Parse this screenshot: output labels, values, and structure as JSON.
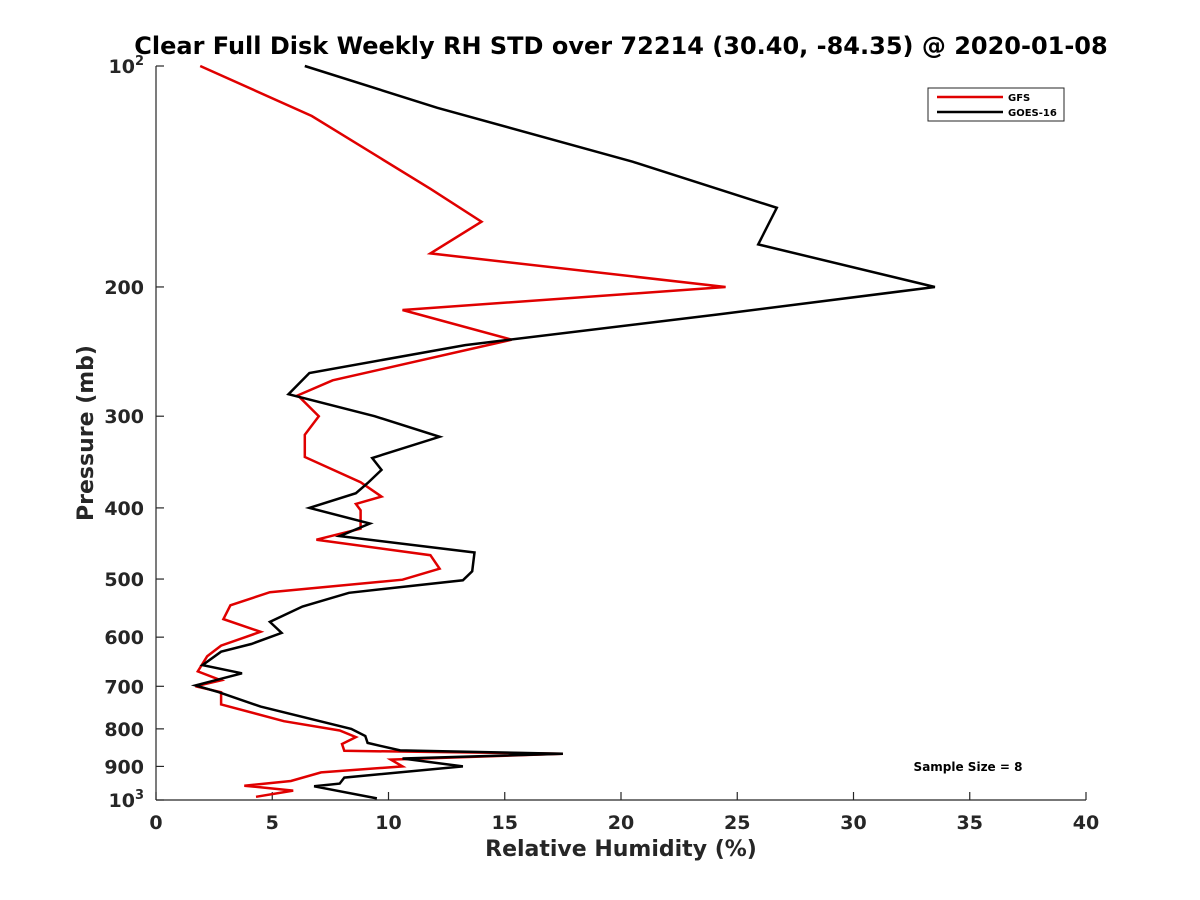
{
  "chart_data": {
    "type": "line",
    "title": "Clear Full Disk Weekly RH STD over 72214 (30.40, -84.35) @ 2020-01-08",
    "xlabel": "Relative Humidity (%)",
    "ylabel": "Pressure (mb)",
    "xlim": [
      0,
      40
    ],
    "ylim": [
      100,
      1000
    ],
    "yscale": "log",
    "y_reversed": true,
    "xticks": [
      0,
      5,
      10,
      15,
      20,
      25,
      30,
      35,
      40
    ],
    "yticks": [
      {
        "value": 100,
        "base": "10",
        "exp": "2"
      },
      {
        "value": 200,
        "label": "200"
      },
      {
        "value": 300,
        "label": "300"
      },
      {
        "value": 400,
        "label": "400"
      },
      {
        "value": 500,
        "label": "500"
      },
      {
        "value": 600,
        "label": "600"
      },
      {
        "value": 700,
        "label": "700"
      },
      {
        "value": 800,
        "label": "800"
      },
      {
        "value": 900,
        "label": "900"
      },
      {
        "value": 1000,
        "base": "10",
        "exp": "3"
      }
    ],
    "legend_position": "top-right",
    "series": [
      {
        "name": "GFS",
        "color": "#e00000",
        "points": [
          [
            1.9,
            100
          ],
          [
            6.7,
            117
          ],
          [
            11.8,
            147
          ],
          [
            14.0,
            163
          ],
          [
            11.8,
            180
          ],
          [
            24.5,
            200
          ],
          [
            10.6,
            215
          ],
          [
            15.3,
            236
          ],
          [
            7.6,
            268
          ],
          [
            6.1,
            281
          ],
          [
            7.0,
            300
          ],
          [
            6.4,
            318
          ],
          [
            6.4,
            341
          ],
          [
            8.8,
            369
          ],
          [
            9.7,
            386
          ],
          [
            8.6,
            395
          ],
          [
            8.8,
            403
          ],
          [
            8.8,
            427
          ],
          [
            6.9,
            442
          ],
          [
            11.8,
            464
          ],
          [
            12.2,
            484
          ],
          [
            10.6,
            501
          ],
          [
            4.9,
            521
          ],
          [
            3.2,
            543
          ],
          [
            2.9,
            567
          ],
          [
            4.5,
            590
          ],
          [
            2.8,
            616
          ],
          [
            2.2,
            637
          ],
          [
            1.8,
            668
          ],
          [
            2.8,
            687
          ],
          [
            1.7,
            700
          ],
          [
            2.8,
            713
          ],
          [
            2.8,
            741
          ],
          [
            5.5,
            781
          ],
          [
            7.9,
            804
          ],
          [
            8.6,
            821
          ],
          [
            8.0,
            839
          ],
          [
            8.1,
            857
          ],
          [
            17.5,
            865
          ],
          [
            10.1,
            881
          ],
          [
            10.6,
            900
          ],
          [
            7.1,
            917
          ],
          [
            5.8,
            942
          ],
          [
            3.8,
            956
          ],
          [
            5.9,
            971
          ],
          [
            4.3,
            990
          ]
        ]
      },
      {
        "name": "GOES-16",
        "color": "#000000",
        "points": [
          [
            6.4,
            100
          ],
          [
            12.1,
            114
          ],
          [
            20.5,
            135
          ],
          [
            26.7,
            156
          ],
          [
            25.9,
            175
          ],
          [
            33.5,
            200
          ],
          [
            24.2,
            218
          ],
          [
            13.3,
            240
          ],
          [
            6.6,
            262
          ],
          [
            5.7,
            280
          ],
          [
            9.4,
            300
          ],
          [
            12.2,
            320
          ],
          [
            9.3,
            342
          ],
          [
            9.7,
            355
          ],
          [
            9.1,
            370
          ],
          [
            8.6,
            382
          ],
          [
            6.6,
            400
          ],
          [
            9.2,
            420
          ],
          [
            7.9,
            437
          ],
          [
            13.7,
            460
          ],
          [
            13.6,
            488
          ],
          [
            13.2,
            502
          ],
          [
            8.3,
            522
          ],
          [
            6.3,
            545
          ],
          [
            4.9,
            572
          ],
          [
            5.4,
            592
          ],
          [
            4.1,
            613
          ],
          [
            2.8,
            628
          ],
          [
            2.0,
            655
          ],
          [
            3.7,
            672
          ],
          [
            1.7,
            698
          ],
          [
            2.7,
            713
          ],
          [
            4.5,
            746
          ],
          [
            8.4,
            800
          ],
          [
            9.0,
            818
          ],
          [
            9.1,
            836
          ],
          [
            10.5,
            856
          ],
          [
            17.5,
            865
          ],
          [
            10.6,
            878
          ],
          [
            13.2,
            900
          ],
          [
            8.1,
            932
          ],
          [
            7.9,
            950
          ],
          [
            6.8,
            958
          ],
          [
            9.5,
            995
          ]
        ]
      }
    ],
    "annotations": [
      {
        "text": "Sample Size = 8",
        "x": 33.0,
        "y": 900
      }
    ]
  }
}
